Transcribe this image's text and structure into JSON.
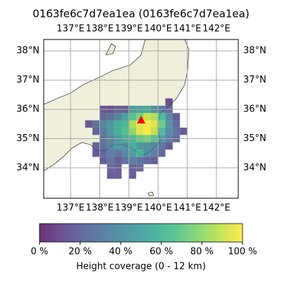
{
  "chart_data": {
    "type": "heatmap",
    "title": "0163fe6c7d7ea1ea (0163fe6c7d7ea1ea)",
    "xlim": [
      136.08,
      142.75
    ],
    "ylim": [
      32.96,
      38.39
    ],
    "xticks": [
      {
        "value": 137,
        "label": "137°E"
      },
      {
        "value": 138,
        "label": "138°E"
      },
      {
        "value": 139,
        "label": "139°E"
      },
      {
        "value": 140,
        "label": "140°E"
      },
      {
        "value": 141,
        "label": "141°E"
      },
      {
        "value": 142,
        "label": "142°E"
      }
    ],
    "yticks": [
      {
        "value": 34,
        "label": "34°N"
      },
      {
        "value": 35,
        "label": "35°N"
      },
      {
        "value": 36,
        "label": "36°N"
      },
      {
        "value": 37,
        "label": "37°N"
      },
      {
        "value": 38,
        "label": "38°N"
      }
    ],
    "grid": true,
    "cell_lon": [
      137.5,
      137.75,
      138.0,
      138.25,
      138.5,
      138.75,
      139.0,
      139.25,
      139.5,
      139.75,
      140.0,
      140.25,
      140.5,
      140.75
    ],
    "cell_lat": [
      36.375,
      36.125,
      35.875,
      35.625,
      35.375,
      35.125,
      34.875,
      34.625,
      34.375,
      34.125,
      33.875
    ],
    "cell_size": 0.25,
    "values": [
      [
        null,
        null,
        null,
        null,
        null,
        null,
        null,
        null,
        null,
        null,
        null,
        12,
        null,
        null
      ],
      [
        null,
        null,
        15,
        12,
        18,
        15,
        45,
        50,
        55,
        40,
        30,
        20,
        null,
        null
      ],
      [
        null,
        null,
        20,
        25,
        35,
        50,
        65,
        75,
        90,
        85,
        60,
        35,
        15,
        null
      ],
      [
        15,
        25,
        35,
        45,
        55,
        60,
        85,
        95,
        100,
        95,
        70,
        40,
        20,
        null
      ],
      [
        null,
        20,
        30,
        45,
        55,
        65,
        80,
        95,
        100,
        90,
        60,
        35,
        25,
        15
      ],
      [
        null,
        null,
        25,
        35,
        45,
        55,
        60,
        70,
        75,
        65,
        45,
        30,
        20,
        null
      ],
      [
        null,
        20,
        25,
        35,
        45,
        40,
        55,
        45,
        40,
        35,
        25,
        15,
        null,
        null
      ],
      [
        null,
        15,
        20,
        30,
        25,
        35,
        45,
        60,
        40,
        30,
        20,
        null,
        null,
        null
      ],
      [
        null,
        null,
        15,
        25,
        15,
        25,
        30,
        25,
        20,
        15,
        null,
        null,
        null,
        null
      ],
      [
        null,
        null,
        null,
        20,
        15,
        null,
        15,
        20,
        null,
        null,
        null,
        null,
        null,
        null
      ],
      [
        null,
        null,
        null,
        15,
        15,
        null,
        15,
        null,
        null,
        null,
        null,
        null,
        null,
        null
      ]
    ],
    "marker": {
      "lon": 139.42,
      "lat": 35.64,
      "color": "#ff0000"
    },
    "colormap": "viridis",
    "colorbar_lim": [
      0,
      100
    ],
    "colorbar_ticks": [
      {
        "value": 0,
        "label": "0 %"
      },
      {
        "value": 20,
        "label": "20 %"
      },
      {
        "value": 40,
        "label": "40 %"
      },
      {
        "value": 60,
        "label": "60 %"
      },
      {
        "value": 80,
        "label": "80 %"
      },
      {
        "value": 100,
        "label": "100 %"
      }
    ],
    "colorbar_label": "Height coverage (0 - 12 km)"
  }
}
